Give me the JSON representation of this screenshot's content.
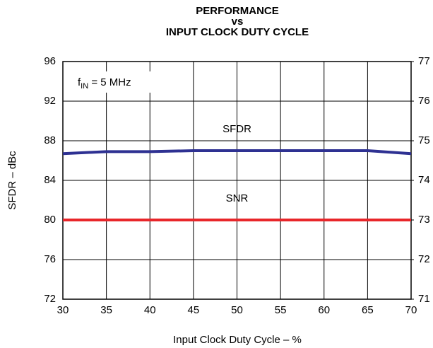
{
  "chart_data": {
    "type": "line",
    "title": [
      "PERFORMANCE",
      "vs",
      "INPUT CLOCK DUTY CYCLE"
    ],
    "xlabel": "Input Clock Duty Cycle – %",
    "ylabel": "SFDR – dBc",
    "annotation": [
      "f",
      "IN",
      " = 5 MHz"
    ],
    "x": [
      30,
      35,
      40,
      45,
      50,
      55,
      60,
      65,
      70
    ],
    "series": [
      {
        "name": "SFDR",
        "color": "#2e3192",
        "values": [
          86.7,
          86.9,
          86.9,
          87.0,
          87.0,
          87.0,
          87.0,
          87.0,
          86.7
        ]
      },
      {
        "name": "SNR",
        "color": "#e8262a",
        "axis": "y2",
        "values": [
          73,
          73,
          73,
          73,
          73,
          73,
          73,
          73,
          73
        ]
      }
    ],
    "xlim": [
      30,
      70
    ],
    "xticks": [
      30,
      35,
      40,
      45,
      50,
      55,
      60,
      65,
      70
    ],
    "ylim": [
      72,
      96
    ],
    "yticks": [
      72,
      76,
      80,
      84,
      88,
      92,
      96
    ],
    "y2lim": [
      71,
      77
    ],
    "y2ticks": [
      71,
      72,
      73,
      74,
      75,
      76,
      77
    ],
    "grid": true
  }
}
